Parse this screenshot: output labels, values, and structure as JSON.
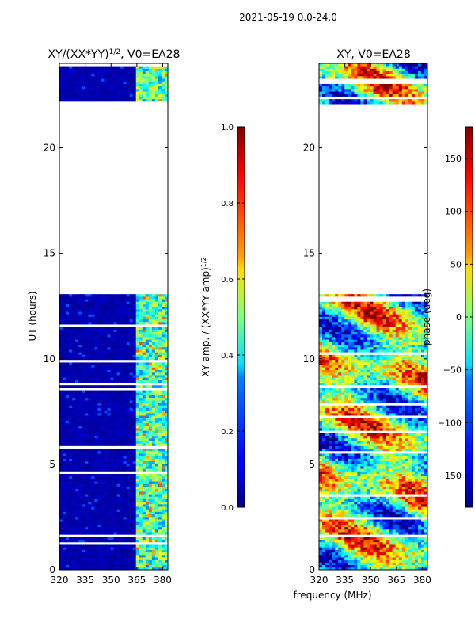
{
  "suptitle": "2021-05-19 0.0-24.0",
  "xlabel_shared": "frequency (MHz)",
  "chart_data": [
    {
      "type": "heatmap",
      "title": "XY/(XX*YY)^{1/2}, V0=EA28",
      "title_main": "XY/(XX*YY)",
      "title_sup": "1/2",
      "title_rest": ", V0=EA28",
      "xlabel": "",
      "ylabel": "UT (hours)",
      "xlim": [
        320,
        383
      ],
      "ylim": [
        0,
        24
      ],
      "xticks": [
        320,
        335,
        350,
        365,
        380
      ],
      "yticks": [
        0,
        5,
        10,
        15,
        20
      ],
      "data_gap_hours": [
        13.0,
        22.0
      ],
      "colorbar": {
        "label": "XY amp. / (XX*YY amp)^{1/2}",
        "label_main": "XY amp. / (XX*YY amp)",
        "label_sup": "1/2",
        "range": [
          0.0,
          1.0
        ],
        "ticks": [
          "0.0",
          "0.2",
          "0.4",
          "0.6",
          "0.8",
          "1.0"
        ],
        "tick_values": [
          0.0,
          0.2,
          0.4,
          0.6,
          0.8,
          1.0
        ]
      }
    },
    {
      "type": "heatmap",
      "title": "XY, V0=EA28",
      "xlabel": "",
      "ylabel": "",
      "xlim": [
        320,
        383
      ],
      "ylim": [
        0,
        24
      ],
      "xticks": [
        320,
        335,
        350,
        365,
        380
      ],
      "yticks": [
        0,
        5,
        10,
        15,
        20
      ],
      "data_gap_hours": [
        13.0,
        22.0
      ],
      "colorbar": {
        "label": "phase (deg)",
        "range": [
          -180,
          180
        ],
        "ticks": [
          "−150",
          "−100",
          "−50",
          "0",
          "50",
          "100",
          "150"
        ],
        "tick_values": [
          -150,
          -100,
          -50,
          0,
          50,
          100,
          150
        ]
      }
    }
  ]
}
